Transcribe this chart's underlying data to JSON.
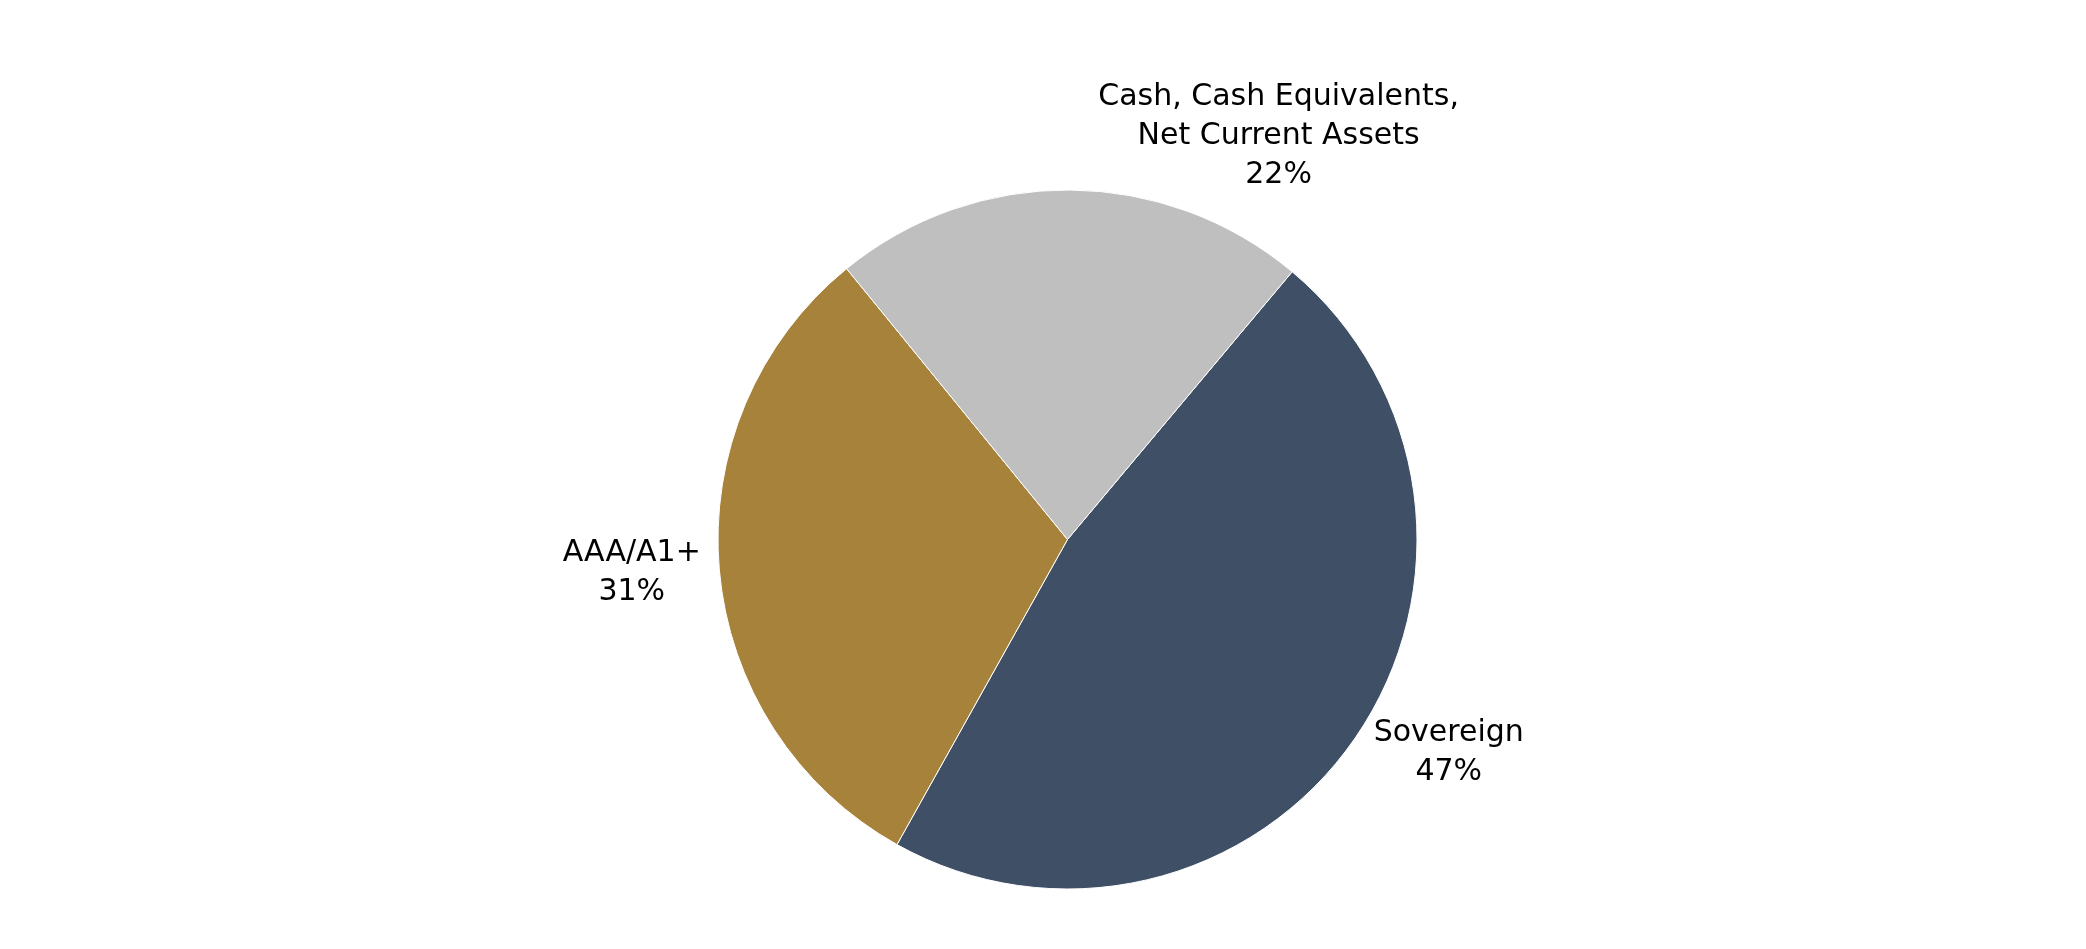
{
  "chart_data": {
    "type": "pie",
    "categories": [
      "Sovereign",
      "AAA/A1+",
      "Cash, Cash Equivalents, Net Current Assets"
    ],
    "values": [
      47,
      31,
      22
    ],
    "value_labels": [
      "47%",
      "31%",
      "22%"
    ],
    "colors": [
      "#3f4f66",
      "#a6823a",
      "#bfbfbf"
    ],
    "legend": false
  }
}
